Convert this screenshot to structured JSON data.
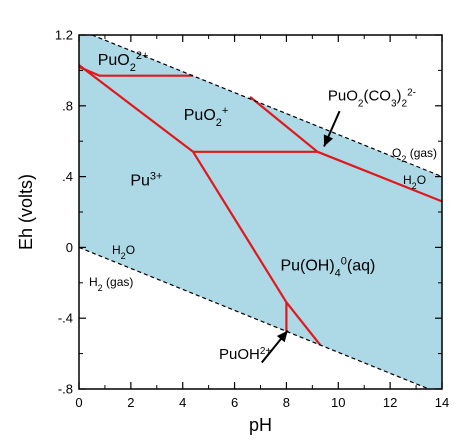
{
  "chart_data": {
    "type": "area",
    "xlabel": "pH",
    "ylabel": "Eh (volts)",
    "xlim": [
      0,
      14
    ],
    "ylim": [
      -0.8,
      1.2
    ],
    "x_ticks": [
      "0",
      "2",
      "4",
      "6",
      "8",
      "10",
      "12",
      "14"
    ],
    "y_ticks": [
      "-.8",
      "-.4",
      "0",
      ".4",
      ".8",
      "1.2"
    ],
    "grid": false,
    "colors": {
      "stability_field": "#add8e6",
      "boundaries": "#e0181b",
      "water_limits": "#000000"
    },
    "water_limits": {
      "upper": {
        "label_phase": "O2 (gas)",
        "label_water": "H2O",
        "points": [
          [
            0,
            1.23
          ],
          [
            14,
            0.4
          ]
        ]
      },
      "lower": {
        "label_water": "H2O",
        "label_phase": "H2 (gas)",
        "points": [
          [
            0,
            0.0
          ],
          [
            14,
            -0.83
          ]
        ]
      }
    },
    "boundaries": [
      {
        "points": [
          [
            0,
            1.03
          ],
          [
            4.4,
            0.54
          ]
        ]
      },
      {
        "points": [
          [
            0,
            1.02
          ],
          [
            0.8,
            0.97
          ],
          [
            4.4,
            0.97
          ]
        ]
      },
      {
        "points": [
          [
            4.4,
            0.54
          ],
          [
            4.4,
            0.54
          ],
          [
            9.2,
            0.54
          ]
        ]
      },
      {
        "points": [
          [
            6.6,
            0.85
          ],
          [
            9.2,
            0.54
          ]
        ]
      },
      {
        "points": [
          [
            9.2,
            0.54
          ],
          [
            14,
            0.26
          ]
        ]
      },
      {
        "points": [
          [
            4.4,
            0.54
          ],
          [
            8.0,
            -0.31
          ]
        ]
      },
      {
        "points": [
          [
            8.0,
            -0.31
          ],
          [
            8.0,
            -0.48
          ]
        ]
      },
      {
        "points": [
          [
            8.0,
            -0.31
          ],
          [
            9.3,
            -0.55
          ]
        ]
      }
    ],
    "regions": [
      {
        "base": "PuO",
        "sub": "2",
        "sup": "2+",
        "x": 1.7,
        "y": 1.03
      },
      {
        "base": "PuO",
        "sub": "2",
        "sup": "+",
        "x": 4.9,
        "y": 0.72
      },
      {
        "base": "Pu",
        "sub": "",
        "sup": "3+",
        "x": 2.6,
        "y": 0.35
      },
      {
        "base": "Pu(OH)",
        "sub": "4",
        "sup": "0",
        "tail": "(aq)",
        "x": 9.6,
        "y": -0.13
      }
    ],
    "annotations": [
      {
        "base": "PuO",
        "sub": "2",
        "tail": "(CO",
        "sub2": "3",
        "tail2": ")",
        "sub3": "2",
        "sup": "2-",
        "x": 9.6,
        "y": 0.83,
        "arrow_from": [
          10.05,
          0.77
        ],
        "arrow_to": [
          9.45,
          0.57
        ]
      },
      {
        "base": "PuOH",
        "sup": "2+",
        "x": 5.4,
        "y": -0.63,
        "arrow_from": [
          7.05,
          -0.65
        ],
        "arrow_to": [
          8.05,
          -0.47
        ]
      }
    ]
  }
}
